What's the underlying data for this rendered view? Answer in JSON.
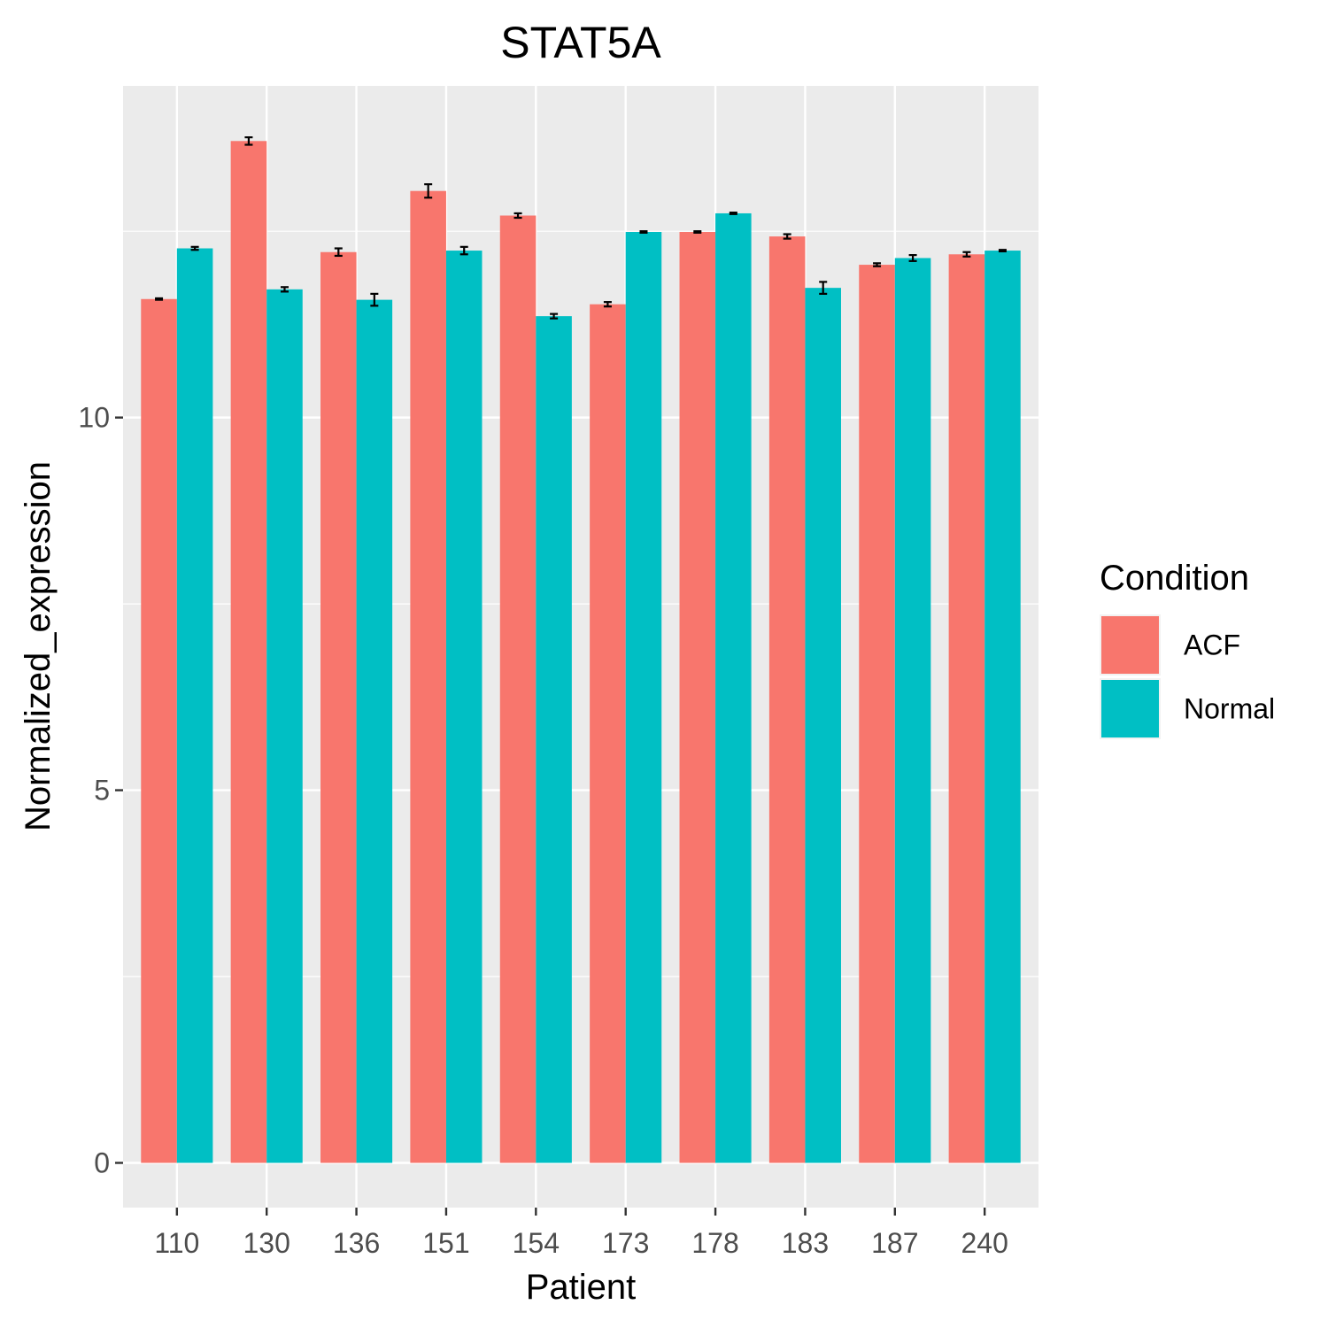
{
  "chart_data": {
    "type": "bar",
    "title": "STAT5A",
    "xlabel": "Patient",
    "ylabel": "Normalized_expression",
    "categories": [
      "110",
      "130",
      "136",
      "151",
      "154",
      "173",
      "178",
      "183",
      "187",
      "240"
    ],
    "series": [
      {
        "name": "ACF",
        "color": "#F8766D",
        "values": [
          11.59,
          13.71,
          12.22,
          13.04,
          12.71,
          11.52,
          12.49,
          12.43,
          12.05,
          12.19
        ],
        "errors": [
          0.01,
          0.05,
          0.05,
          0.09,
          0.03,
          0.03,
          0.01,
          0.03,
          0.02,
          0.03
        ]
      },
      {
        "name": "Normal",
        "color": "#00BFC4",
        "values": [
          12.27,
          11.72,
          11.58,
          12.24,
          11.36,
          12.49,
          12.74,
          11.74,
          12.14,
          12.24
        ],
        "errors": [
          0.02,
          0.03,
          0.08,
          0.05,
          0.03,
          0.01,
          0.01,
          0.08,
          0.04,
          0.01
        ]
      }
    ],
    "yticks": [
      0,
      5,
      10
    ],
    "ylim": [
      -0.6,
      14.45
    ],
    "grid": true,
    "legend": {
      "title": "Condition",
      "position": "right"
    }
  }
}
